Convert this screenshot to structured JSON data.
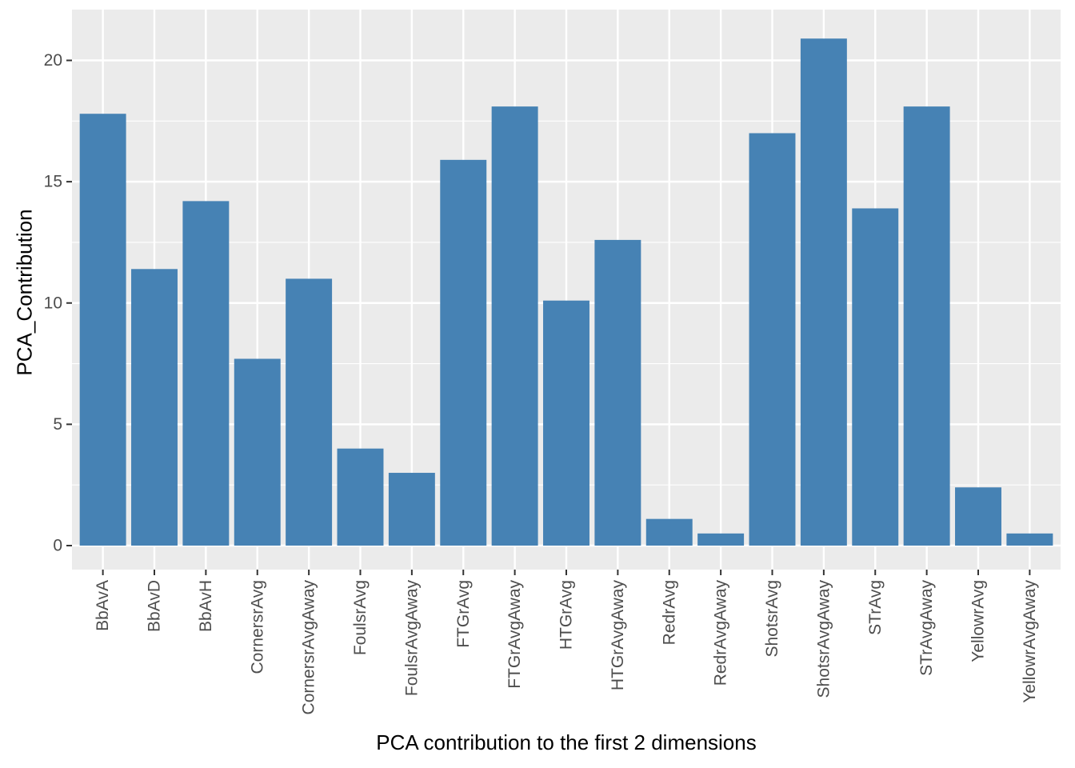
{
  "chart_data": {
    "type": "bar",
    "title": "",
    "xlabel": "PCA contribution to the first 2 dimensions",
    "ylabel": "PCA_Contribution",
    "categories": [
      "BbAvA",
      "BbAvD",
      "BbAvH",
      "CornersrAvg",
      "CornersrAvgAway",
      "FoulsrAvg",
      "FoulsrAvgAway",
      "FTGrAvg",
      "FTGrAvgAway",
      "HTGrAvg",
      "HTGrAvgAway",
      "RedrAvg",
      "RedrAvgAway",
      "ShotsrAvg",
      "ShotsrAvgAway",
      "STrAvg",
      "STrAvgAway",
      "YellowrAvg",
      "YellowrAvgAway"
    ],
    "values": [
      17.8,
      11.4,
      14.2,
      7.7,
      11.0,
      4.0,
      3.0,
      15.9,
      18.1,
      10.1,
      12.6,
      1.1,
      0.5,
      17.0,
      20.9,
      13.9,
      18.1,
      2.4,
      0.5
    ],
    "yticks": [
      0,
      5,
      10,
      15,
      20
    ],
    "ylim": [
      -1.05,
      22.0
    ],
    "grid": true,
    "legend": "none",
    "bar_color": "#4682B4",
    "panel_background": "#EBEBEB",
    "grid_color": "#FFFFFF"
  }
}
